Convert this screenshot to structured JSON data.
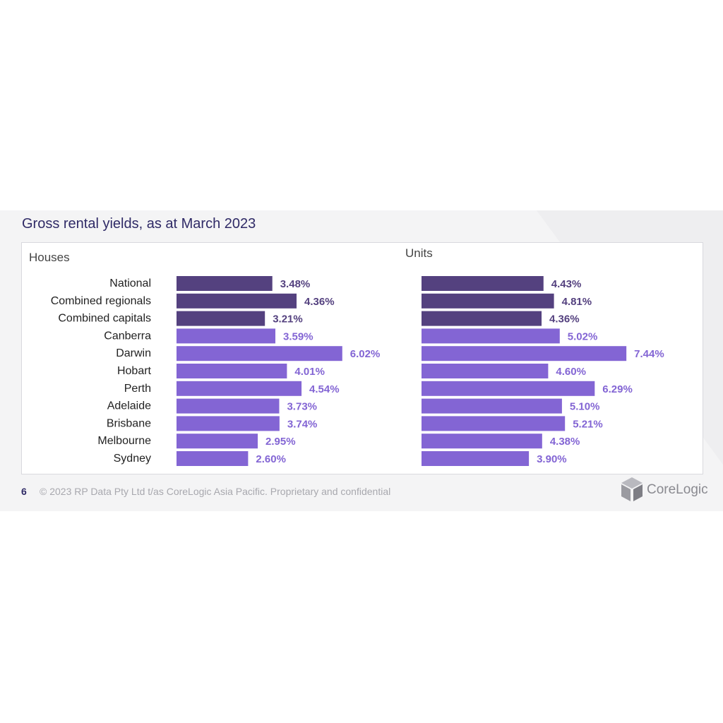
{
  "title": "Gross rental yields, as at March 2023",
  "colors": {
    "dark": "#54417f",
    "light": "#8365d4",
    "title": "#2f2a66",
    "text": "#222222"
  },
  "chart_data": [
    {
      "type": "bar",
      "orientation": "horizontal",
      "title": "Houses",
      "categories": [
        "National",
        "Combined regionals",
        "Combined capitals",
        "Canberra",
        "Darwin",
        "Hobart",
        "Perth",
        "Adelaide",
        "Brisbane",
        "Melbourne",
        "Sydney"
      ],
      "values": [
        3.48,
        4.36,
        3.21,
        3.59,
        6.02,
        4.01,
        4.54,
        3.73,
        3.74,
        2.95,
        2.6
      ],
      "labels": [
        "3.48%",
        "4.36%",
        "3.21%",
        "3.59%",
        "6.02%",
        "4.01%",
        "4.54%",
        "3.73%",
        "3.74%",
        "2.95%",
        "2.60%"
      ],
      "highlight_count": 3,
      "unit": "%"
    },
    {
      "type": "bar",
      "orientation": "horizontal",
      "title": "Units",
      "categories": [
        "National",
        "Combined regionals",
        "Combined capitals",
        "Canberra",
        "Darwin",
        "Hobart",
        "Perth",
        "Adelaide",
        "Brisbane",
        "Melbourne",
        "Sydney"
      ],
      "values": [
        4.43,
        4.81,
        4.36,
        5.02,
        7.44,
        4.6,
        6.29,
        5.1,
        5.21,
        4.38,
        3.9
      ],
      "labels": [
        "4.43%",
        "4.81%",
        "4.36%",
        "5.02%",
        "7.44%",
        "4.60%",
        "6.29%",
        "5.10%",
        "5.21%",
        "4.38%",
        "3.90%"
      ],
      "highlight_count": 3,
      "unit": "%"
    }
  ],
  "footer": {
    "page_number": "6",
    "copyright": "© 2023 RP Data Pty Ltd t/as CoreLogic Asia Pacific. Proprietary and confidential"
  },
  "logo": {
    "text": "CoreLogic",
    "icon": "corelogic-cube-icon"
  }
}
